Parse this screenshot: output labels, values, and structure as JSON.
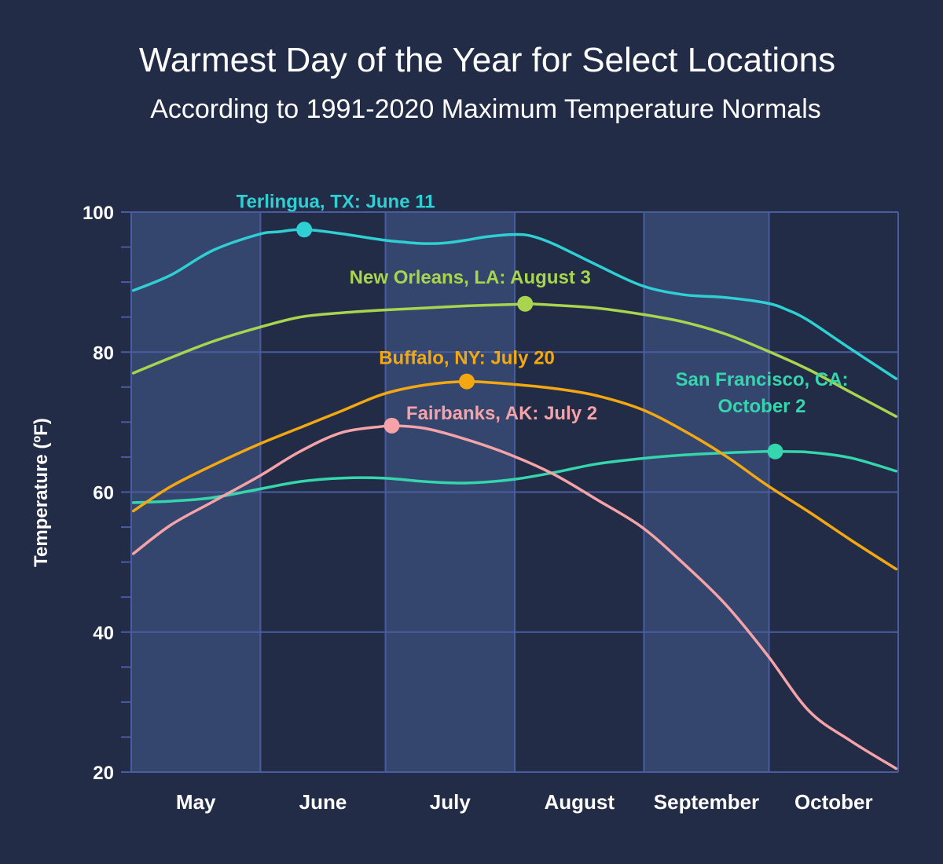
{
  "title": "Warmest Day of the Year for Select Locations",
  "subtitle": "According to 1991-2020 Maximum Temperature Normals",
  "chart_data": {
    "type": "line",
    "ylabel": "Temperature (ºF)",
    "xlabel": "",
    "ylim": [
      20,
      100
    ],
    "y_ticks": [
      20,
      40,
      60,
      80,
      100
    ],
    "months": [
      {
        "label": "May",
        "start": "May 1",
        "end": "May 31"
      },
      {
        "label": "June",
        "start": "Jun 1",
        "end": "Jun 30"
      },
      {
        "label": "July",
        "start": "Jul 1",
        "end": "Jul 31"
      },
      {
        "label": "August",
        "start": "Aug 1",
        "end": "Aug 31"
      },
      {
        "label": "September",
        "start": "Sep 1",
        "end": "Sep 30"
      },
      {
        "label": "October",
        "start": "Oct 1",
        "end": "Oct 31"
      }
    ],
    "background_bands": "alternating months, May, July and September shaded lighter",
    "grid": true,
    "colors": {
      "background": "#222c47",
      "band": "#34466e",
      "grid": "#4a5ca0"
    },
    "series": [
      {
        "name": "Terlingua, TX",
        "color": "#2fd0d4",
        "x": [
          "May 1",
          "May 10",
          "May 20",
          "May 31",
          "Jun 5",
          "Jun 11",
          "Jun 20",
          "Jun 30",
          "Jul 5",
          "Jul 10",
          "Jul 15",
          "Jul 20",
          "Jul 25",
          "Aug 1",
          "Aug 5",
          "Aug 10",
          "Aug 20",
          "Aug 31",
          "Sep 10",
          "Sep 20",
          "Sep 30",
          "Oct 5",
          "Oct 10",
          "Oct 20",
          "Oct 31"
        ],
        "y": [
          88.8,
          91.0,
          94.5,
          96.8,
          97.2,
          97.5,
          96.9,
          96.0,
          95.7,
          95.5,
          95.6,
          96.0,
          96.5,
          96.8,
          96.5,
          95.4,
          92.5,
          89.5,
          88.2,
          87.8,
          87.0,
          86.0,
          84.5,
          80.5,
          76.2
        ],
        "peak": {
          "x": "Jun 11",
          "y": 97.5,
          "label": "Terlingua, TX: June 11"
        }
      },
      {
        "name": "New Orleans, LA",
        "color": "#a8d44e",
        "x": [
          "May 1",
          "May 10",
          "May 20",
          "May 31",
          "Jun 10",
          "Jun 20",
          "Jun 30",
          "Jul 10",
          "Jul 20",
          "Jul 31",
          "Aug 3",
          "Aug 10",
          "Aug 20",
          "Aug 31",
          "Sep 10",
          "Sep 20",
          "Sep 30",
          "Oct 10",
          "Oct 20",
          "Oct 31"
        ],
        "y": [
          77.0,
          79.2,
          81.5,
          83.5,
          85.0,
          85.6,
          86.0,
          86.3,
          86.6,
          86.8,
          86.9,
          86.7,
          86.3,
          85.4,
          84.3,
          82.6,
          80.2,
          77.5,
          74.3,
          70.8
        ],
        "peak": {
          "x": "Aug 3",
          "y": 86.9,
          "label": "New Orleans, LA: August 3"
        }
      },
      {
        "name": "Buffalo, NY",
        "color": "#f3a812",
        "x": [
          "May 1",
          "May 10",
          "May 20",
          "May 31",
          "Jun 10",
          "Jun 20",
          "Jun 30",
          "Jul 10",
          "Jul 20",
          "Jul 31",
          "Aug 10",
          "Aug 20",
          "Aug 31",
          "Sep 10",
          "Sep 20",
          "Sep 30",
          "Oct 10",
          "Oct 20",
          "Oct 31"
        ],
        "y": [
          57.3,
          60.8,
          63.8,
          66.8,
          69.2,
          71.6,
          74.0,
          75.3,
          75.8,
          75.4,
          74.8,
          73.8,
          71.8,
          68.8,
          65.2,
          61.0,
          57.2,
          53.2,
          49.0
        ],
        "peak": {
          "x": "Jul 20",
          "y": 75.8,
          "label": "Buffalo, NY: July 20"
        }
      },
      {
        "name": "Fairbanks, AK",
        "color": "#f5a3a9",
        "x": [
          "May 1",
          "May 10",
          "May 20",
          "May 31",
          "Jun 10",
          "Jun 20",
          "Jun 30",
          "Jul 2",
          "Jul 10",
          "Jul 20",
          "Jul 31",
          "Aug 10",
          "Aug 20",
          "Aug 31",
          "Sep 10",
          "Sep 20",
          "Sep 30",
          "Oct 10",
          "Oct 20",
          "Oct 31"
        ],
        "y": [
          51.2,
          55.3,
          58.6,
          62.2,
          65.8,
          68.5,
          69.4,
          69.5,
          69.1,
          67.5,
          65.2,
          62.5,
          59.0,
          55.0,
          49.8,
          44.0,
          36.8,
          28.8,
          24.5,
          20.5
        ],
        "peak": {
          "x": "Jul 2",
          "y": 69.5,
          "label": "Fairbanks, AK: July 2"
        }
      },
      {
        "name": "San Francisco, CA",
        "color": "#35d6ad",
        "x": [
          "May 1",
          "May 10",
          "May 20",
          "May 31",
          "Jun 10",
          "Jun 20",
          "Jun 30",
          "Jul 10",
          "Jul 20",
          "Jul 31",
          "Aug 10",
          "Aug 20",
          "Aug 31",
          "Sep 10",
          "Sep 20",
          "Sep 30",
          "Oct 2",
          "Oct 10",
          "Oct 20",
          "Oct 31"
        ],
        "y": [
          58.5,
          58.7,
          59.2,
          60.4,
          61.5,
          62.0,
          62.0,
          61.5,
          61.3,
          61.8,
          62.8,
          64.0,
          64.8,
          65.3,
          65.6,
          65.8,
          65.8,
          65.7,
          64.9,
          63.0
        ],
        "peak": {
          "x": "Oct 2",
          "y": 65.8,
          "label_lines": [
            "San Francisco, CA:",
            "October 2"
          ]
        }
      }
    ]
  }
}
